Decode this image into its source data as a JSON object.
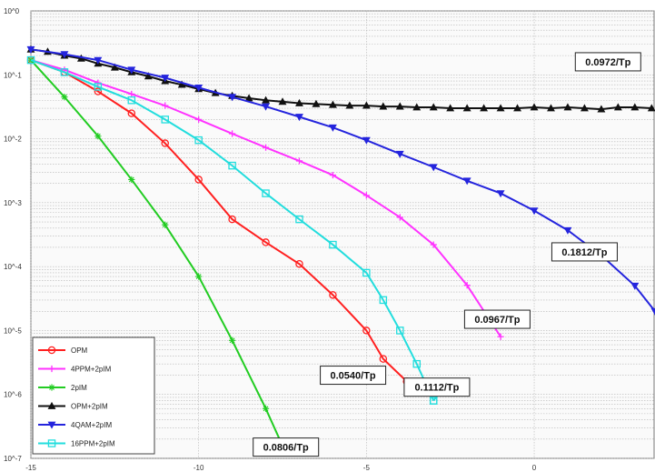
{
  "chart_data": {
    "type": "line",
    "y_scale": "log",
    "xlim": [
      -15,
      3.6
    ],
    "ylim": [
      1e-07,
      1
    ],
    "grid": true,
    "legend_position": "bottom-left",
    "xticks": [
      "-15",
      "-10",
      "-5",
      "0"
    ],
    "yticks": [
      "10^0",
      "10^-1",
      "10^-2",
      "10^-3",
      "10^-4",
      "10^-5",
      "10^-6",
      "10^-7"
    ],
    "series": [
      {
        "name": "OPM",
        "color": "#ff2020",
        "marker": "circle",
        "x": [
          -15,
          -14,
          -13,
          -12,
          -11,
          -10,
          -9,
          -8,
          -7,
          -6,
          -5,
          -4.5,
          -3.8
        ],
        "y": [
          0.17,
          0.11,
          0.055,
          0.025,
          0.0085,
          0.0023,
          0.00055,
          0.00024,
          0.00011,
          3.6e-05,
          1e-05,
          3.6e-06,
          1.6e-06
        ]
      },
      {
        "name": "4PPM+2pIM",
        "color": "#ff33ff",
        "marker": "plus",
        "x": [
          -15,
          -14,
          -13,
          -12,
          -11,
          -10,
          -9,
          -8,
          -7,
          -6,
          -5,
          -4,
          -3,
          -2,
          -1
        ],
        "y": [
          0.17,
          0.12,
          0.075,
          0.05,
          0.033,
          0.02,
          0.012,
          0.0073,
          0.0045,
          0.0027,
          0.0013,
          0.00059,
          0.00022,
          5.1e-05,
          8e-06
        ]
      },
      {
        "name": "2pIM",
        "color": "#22cc22",
        "marker": "star",
        "x": [
          -15,
          -14,
          -13,
          -12,
          -11,
          -10,
          -9,
          -8,
          -7.4
        ],
        "y": [
          0.17,
          0.045,
          0.011,
          0.0023,
          0.00045,
          7e-05,
          7e-06,
          6e-07,
          1.2e-07
        ]
      },
      {
        "name": "OPM+2pIM",
        "color": "#111111",
        "marker": "triangle-up",
        "x": [
          -15,
          -14.5,
          -14,
          -13.5,
          -13,
          -12.5,
          -12,
          -11.5,
          -11,
          -10.5,
          -10,
          -9.5,
          -9,
          -8.5,
          -8,
          -7.5,
          -7,
          -6.5,
          -6,
          -5.5,
          -5,
          -4.5,
          -4,
          -3.5,
          -3,
          -2.5,
          -2,
          -1.5,
          -1,
          -0.5,
          0,
          0.5,
          1,
          1.5,
          2,
          2.5,
          3,
          3.5
        ],
        "y": [
          0.25,
          0.23,
          0.2,
          0.18,
          0.15,
          0.13,
          0.11,
          0.095,
          0.08,
          0.07,
          0.06,
          0.052,
          0.047,
          0.043,
          0.04,
          0.038,
          0.036,
          0.035,
          0.034,
          0.033,
          0.033,
          0.032,
          0.032,
          0.031,
          0.031,
          0.03,
          0.03,
          0.03,
          0.03,
          0.03,
          0.031,
          0.03,
          0.031,
          0.03,
          0.029,
          0.031,
          0.031,
          0.03
        ]
      },
      {
        "name": "4QAM+2pIM",
        "color": "#2424dd",
        "marker": "triangle-down",
        "x": [
          -15,
          -14,
          -13,
          -12,
          -11,
          -10,
          -9,
          -8,
          -7,
          -6,
          -5,
          -4,
          -3,
          -2,
          -1,
          0,
          1,
          2,
          3,
          3.6
        ],
        "y": [
          0.25,
          0.21,
          0.17,
          0.12,
          0.09,
          0.063,
          0.045,
          0.032,
          0.022,
          0.015,
          0.0095,
          0.0058,
          0.0036,
          0.0022,
          0.0014,
          0.00075,
          0.00037,
          0.00015,
          5e-05,
          2e-05
        ]
      },
      {
        "name": "16PPM+2pIM",
        "color": "#22dddd",
        "marker": "square",
        "x": [
          -15,
          -14,
          -13,
          -12,
          -11,
          -10,
          -9,
          -8,
          -7,
          -6,
          -5,
          -4.5,
          -4,
          -3.5,
          -3
        ],
        "y": [
          0.17,
          0.11,
          0.065,
          0.04,
          0.02,
          0.0095,
          0.0038,
          0.0014,
          0.00055,
          0.00022,
          8e-05,
          3e-05,
          1e-05,
          3e-06,
          8e-07
        ]
      }
    ],
    "extra_segment": {
      "series": "16PPM+2pIM",
      "color": "#22dddd",
      "x": [
        -3,
        -2.6
      ],
      "y": [
        8e-07,
        1.5e-06
      ]
    },
    "annotations": [
      {
        "text": "0.0972/Tp",
        "x": 2.2,
        "y": 0.16
      },
      {
        "text": "0.1812/Tp",
        "x": 1.5,
        "y": 0.00017
      },
      {
        "text": "0.0967/Tp",
        "x": -1.1,
        "y": 1.5e-05
      },
      {
        "text": "0.0540/Tp",
        "x": -5.4,
        "y": 2e-06
      },
      {
        "text": "0.1112/Tp",
        "x": -2.9,
        "y": 1.3e-06
      },
      {
        "text": "0.0806/Tp",
        "x": -7.4,
        "y": 1.5e-07
      }
    ]
  }
}
